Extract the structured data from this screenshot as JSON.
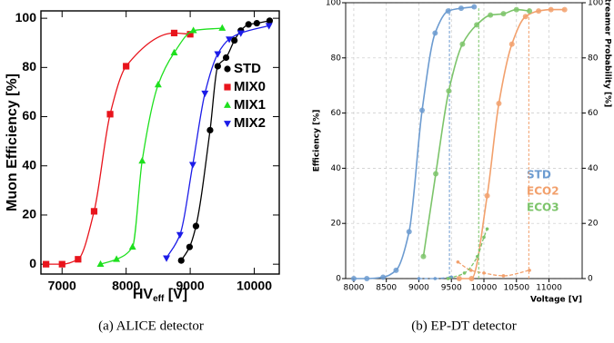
{
  "chart_data": [
    {
      "type": "scatter",
      "caption": "(a) ALICE detector",
      "xlabel_parts": [
        "HV",
        "eff",
        " [V]"
      ],
      "ylabel": "Muon Efficiency [%]",
      "xlim": [
        6670,
        10390
      ],
      "xticks": [
        7000,
        8000,
        9000,
        10000
      ],
      "ylim": [
        -4,
        103
      ],
      "yticks": [
        0,
        20,
        40,
        60,
        80,
        100
      ],
      "grid": false,
      "legend": "right",
      "series": [
        {
          "name": "STD",
          "color": "#000000",
          "marker": "circle",
          "x": [
            8860,
            8990,
            9090,
            9310,
            9430,
            9560,
            9690,
            9790,
            9910,
            10040,
            10240
          ],
          "values": [
            1.5,
            7,
            15.5,
            54.5,
            80.5,
            84,
            91,
            95,
            97.5,
            98,
            99
          ]
        },
        {
          "name": "MIX0",
          "color": "#e8141c",
          "marker": "square",
          "x": [
            6750,
            7000,
            7250,
            7500,
            7750,
            8000,
            8750,
            9000
          ],
          "values": [
            0,
            0,
            2,
            21.5,
            61,
            80.5,
            94,
            93.5
          ]
        },
        {
          "name": "MIX1",
          "color": "#1ee01e",
          "marker": "triangle-up",
          "x": [
            7600,
            7850,
            8100,
            8250,
            8500,
            8750,
            9050,
            9500
          ],
          "values": [
            0,
            2,
            7,
            42,
            73,
            86,
            95,
            96
          ]
        },
        {
          "name": "MIX2",
          "color": "#1c1ce8",
          "marker": "triangle-down",
          "x": [
            8630,
            8840,
            9040,
            9230,
            9430,
            9610,
            9790,
            10230
          ],
          "values": [
            2.5,
            12,
            40.5,
            69.5,
            85.5,
            91.5,
            94,
            97
          ]
        }
      ]
    },
    {
      "type": "scatter",
      "caption": "(b) EP-DT detector",
      "xlabel": "Voltage [V]",
      "ylabel": "Efficiency [%]",
      "y2label": "Streamer Probability [%]",
      "xlim": [
        7875,
        11510
      ],
      "xticks": [
        8000,
        8500,
        9000,
        9500,
        10000,
        10500,
        11000
      ],
      "ylim": [
        0,
        100
      ],
      "yticks": [
        0,
        20,
        40,
        60,
        80,
        100
      ],
      "y2lim": [
        0,
        100
      ],
      "y2ticks": [
        0,
        20,
        40,
        60,
        80,
        100
      ],
      "grid": true,
      "legend": "right",
      "series": [
        {
          "name": "STD",
          "color": "#6c9bd0",
          "marker": "circle",
          "x": [
            8000,
            8200,
            8450,
            8650,
            8850,
            9050,
            9250,
            9450,
            9650,
            9850
          ],
          "values": [
            0,
            0,
            0.5,
            3,
            17,
            61,
            89,
            97,
            98,
            98.5
          ],
          "working_point": 9470,
          "streamer_x": [
            9000,
            9250,
            9500
          ],
          "streamer_values": [
            0,
            0,
            0.5
          ]
        },
        {
          "name": "ECO2",
          "color": "#f2a06c",
          "marker": "circle",
          "x": [
            9620,
            9810,
            10050,
            10230,
            10430,
            10640,
            10840,
            11030,
            11240
          ],
          "values": [
            0,
            0,
            30,
            63.5,
            85,
            95,
            97,
            97.5,
            97.5
          ],
          "working_point": 10690,
          "streamer_x": [
            9600,
            9800,
            10000,
            10300,
            10700
          ],
          "streamer_values": [
            6,
            3,
            2,
            1,
            3
          ]
        },
        {
          "name": "ECO3",
          "color": "#7cc46a",
          "marker": "circle",
          "x": [
            9070,
            9260,
            9460,
            9670,
            9890,
            10100,
            10300,
            10500,
            10700
          ],
          "values": [
            8,
            38,
            68,
            85,
            92,
            95.5,
            96,
            97.5,
            97
          ],
          "working_point": 9920,
          "streamer_x": [
            9450,
            9700,
            9900,
            10000,
            10050
          ],
          "streamer_values": [
            0,
            2,
            8,
            15,
            18
          ]
        }
      ]
    }
  ]
}
